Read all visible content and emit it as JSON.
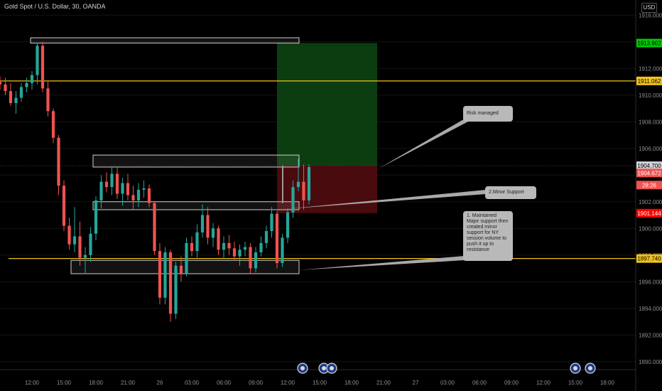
{
  "header": {
    "title": "Gold Spot / U.S. Dollar, 30, OANDA",
    "currency": "USD"
  },
  "price_labels": [
    {
      "text": "1913.902",
      "price": 1913.902,
      "bg": "#00c805",
      "fg": "#000000"
    },
    {
      "text": "1911.062",
      "price": 1911.062,
      "bg": "#f2c31c",
      "fg": "#000000"
    },
    {
      "text": "1904.700",
      "price": 1904.7,
      "bg": "#d1d4dc",
      "fg": "#000000"
    },
    {
      "text": "1904.672",
      "price": 1904.16,
      "bg": "#f05350",
      "fg": "#ffffff"
    },
    {
      "text": "28:26",
      "price": 1903.25,
      "bg": "#f05350",
      "fg": "#ffffff"
    },
    {
      "text": "1901.144",
      "price": 1901.144,
      "bg": "#ff0000",
      "fg": "#ffffff"
    },
    {
      "text": "1897.740",
      "price": 1897.74,
      "bg": "#f2c31c",
      "fg": "#000000"
    }
  ],
  "notes": [
    {
      "text": "Risk managed"
    },
    {
      "text": "2.Minor Support"
    },
    {
      "text": "1. Maintained Major support then created minor support for NY session volume to push it up to resistance"
    }
  ],
  "colors": {
    "up": "#26a69a",
    "down": "#ef5350",
    "level": "#f2c31c",
    "profit": "#0c3d10",
    "loss": "#4a0b0f"
  },
  "chart_data": {
    "type": "candlestick",
    "symbol": "Gold Spot / U.S. Dollar",
    "interval": "30",
    "ylim": [
      1889.4,
      1916.6
    ],
    "yticks": [
      1890,
      1892,
      1894,
      1896,
      1898,
      1900,
      1902,
      1904,
      1906,
      1908,
      1910,
      1912,
      1914,
      1916
    ],
    "ytick_labels": [
      "1890.000",
      "1892.000",
      "1894.000",
      "1896.000",
      "1898.000",
      "1900.000",
      "1902.000",
      "1904.000",
      "1906.000",
      "1908.000",
      "1910.000",
      "1912.000",
      "1914.000",
      "1916.000"
    ],
    "xticks": [
      {
        "label": "12:00",
        "bar": 6
      },
      {
        "label": "15:00",
        "bar": 12
      },
      {
        "label": "18:00",
        "bar": 18
      },
      {
        "label": "21:00",
        "bar": 24
      },
      {
        "label": "26",
        "bar": 30
      },
      {
        "label": "03:00",
        "bar": 36
      },
      {
        "label": "06:00",
        "bar": 42
      },
      {
        "label": "09:00",
        "bar": 48
      },
      {
        "label": "12:00",
        "bar": 54
      },
      {
        "label": "15:00",
        "bar": 60
      },
      {
        "label": "18:00",
        "bar": 66
      },
      {
        "label": "21:00",
        "bar": 72
      },
      {
        "label": "27",
        "bar": 78
      },
      {
        "label": "03:00",
        "bar": 84
      },
      {
        "label": "06:00",
        "bar": 90
      },
      {
        "label": "09:00",
        "bar": 96
      },
      {
        "label": "12:00",
        "bar": 102
      },
      {
        "label": "15:00",
        "bar": 108
      },
      {
        "label": "18:00",
        "bar": 114
      }
    ],
    "candles": [
      [
        1911.0,
        1911.4,
        1910.4,
        1910.8
      ],
      [
        1910.8,
        1911.3,
        1910.0,
        1910.3
      ],
      [
        1910.3,
        1910.9,
        1909.2,
        1909.4
      ],
      [
        1909.4,
        1910.3,
        1908.6,
        1909.8
      ],
      [
        1909.8,
        1910.9,
        1909.5,
        1910.6
      ],
      [
        1910.6,
        1911.3,
        1910.2,
        1910.9
      ],
      [
        1910.9,
        1911.8,
        1910.4,
        1911.5
      ],
      [
        1911.5,
        1913.9,
        1910.8,
        1913.7
      ],
      [
        1913.7,
        1914.0,
        1910.2,
        1910.5
      ],
      [
        1910.5,
        1911.0,
        1908.4,
        1908.8
      ],
      [
        1908.8,
        1909.0,
        1906.4,
        1906.8
      ],
      [
        1906.8,
        1907.0,
        1902.5,
        1903.2
      ],
      [
        1903.2,
        1903.6,
        1899.8,
        1900.2
      ],
      [
        1900.2,
        1900.8,
        1898.4,
        1898.8
      ],
      [
        1898.8,
        1901.6,
        1898.2,
        1899.4
      ],
      [
        1899.4,
        1900.5,
        1897.2,
        1897.8
      ],
      [
        1897.8,
        1898.6,
        1896.6,
        1898.0
      ],
      [
        1898.0,
        1900.1,
        1897.5,
        1899.6
      ],
      [
        1899.6,
        1902.4,
        1899.1,
        1902.1
      ],
      [
        1902.1,
        1904.0,
        1901.5,
        1903.5
      ],
      [
        1903.5,
        1904.2,
        1902.7,
        1903.1
      ],
      [
        1903.1,
        1904.6,
        1902.5,
        1904.1
      ],
      [
        1904.1,
        1904.6,
        1902.2,
        1902.6
      ],
      [
        1902.6,
        1903.8,
        1901.7,
        1903.4
      ],
      [
        1903.4,
        1904.1,
        1902.1,
        1902.5
      ],
      [
        1902.5,
        1903.2,
        1901.4,
        1902.1
      ],
      [
        1902.1,
        1903.4,
        1901.6,
        1902.9
      ],
      [
        1902.9,
        1903.6,
        1902.3,
        1903.0
      ],
      [
        1903.0,
        1903.3,
        1901.6,
        1901.9
      ],
      [
        1901.9,
        1902.0,
        1898.0,
        1898.3
      ],
      [
        1898.3,
        1898.9,
        1894.3,
        1894.8
      ],
      [
        1894.8,
        1898.6,
        1894.3,
        1898.2
      ],
      [
        1898.2,
        1898.4,
        1893.0,
        1893.6
      ],
      [
        1893.6,
        1897.5,
        1893.2,
        1897.2
      ],
      [
        1897.2,
        1897.9,
        1896.0,
        1896.6
      ],
      [
        1896.6,
        1899.3,
        1896.4,
        1898.9
      ],
      [
        1898.9,
        1899.4,
        1897.9,
        1898.3
      ],
      [
        1898.3,
        1900.3,
        1897.8,
        1899.7
      ],
      [
        1899.7,
        1901.8,
        1899.3,
        1901.0
      ],
      [
        1901.0,
        1901.6,
        1898.8,
        1899.3
      ],
      [
        1899.3,
        1900.4,
        1898.6,
        1900.0
      ],
      [
        1900.0,
        1900.2,
        1898.0,
        1898.4
      ],
      [
        1898.4,
        1899.4,
        1897.7,
        1898.9
      ],
      [
        1898.9,
        1899.5,
        1898.0,
        1898.5
      ],
      [
        1898.5,
        1899.0,
        1897.6,
        1897.9
      ],
      [
        1897.9,
        1898.8,
        1897.2,
        1898.4
      ],
      [
        1898.4,
        1899.0,
        1897.9,
        1898.6
      ],
      [
        1898.6,
        1898.9,
        1896.6,
        1897.0
      ],
      [
        1897.0,
        1898.6,
        1896.7,
        1898.2
      ],
      [
        1898.2,
        1899.4,
        1897.9,
        1898.9
      ],
      [
        1898.9,
        1900.2,
        1898.5,
        1899.8
      ],
      [
        1899.8,
        1901.6,
        1899.3,
        1901.1
      ],
      [
        1901.1,
        1901.3,
        1897.0,
        1897.4
      ],
      [
        1897.4,
        1899.6,
        1897.1,
        1899.3
      ],
      [
        1899.3,
        1901.5,
        1898.9,
        1901.2
      ],
      [
        1901.2,
        1903.6,
        1900.8,
        1903.1
      ],
      [
        1903.1,
        1905.2,
        1902.8,
        1903.5
      ],
      [
        1903.5,
        1904.8,
        1901.4,
        1902.1
      ],
      [
        1902.1,
        1904.8,
        1901.8,
        1904.6
      ]
    ],
    "levels": [
      {
        "name": "resistance",
        "price": 1911.062
      },
      {
        "name": "major-support",
        "price": 1897.74
      }
    ],
    "position": {
      "entry": 1904.7,
      "target": 1913.902,
      "stop": 1901.144
    }
  }
}
